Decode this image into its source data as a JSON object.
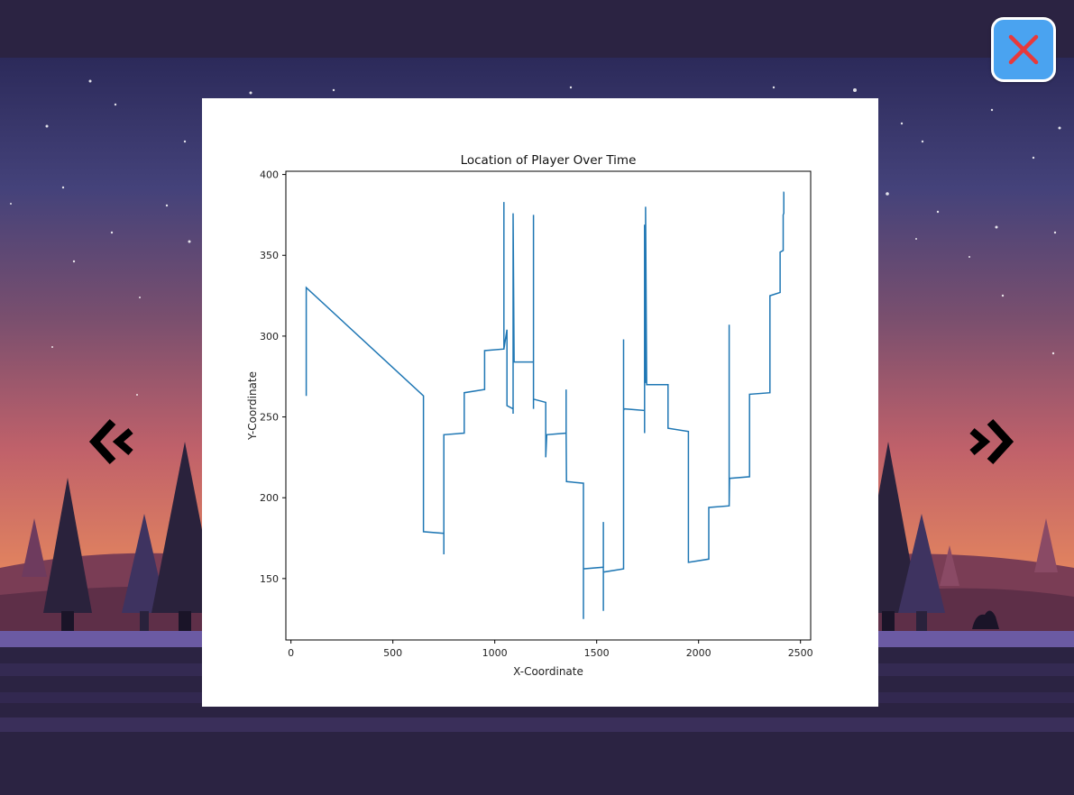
{
  "chart_data": {
    "type": "line",
    "title": "Location of Player Over Time",
    "xlabel": "X-Coordinate",
    "ylabel": "Y-Coordinate",
    "xlim": [
      -25,
      2550
    ],
    "ylim": [
      112,
      402
    ],
    "xticks": [
      0,
      500,
      1000,
      1500,
      2000,
      2500
    ],
    "yticks": [
      150,
      200,
      250,
      300,
      350,
      400
    ],
    "grid": false,
    "series_color": "#1f77b4",
    "series": [
      {
        "x": [
          75,
          75,
          75,
          650,
          650,
          750,
          750,
          750,
          750,
          850,
          850,
          950,
          950,
          1045,
          1045,
          1045,
          1060,
          1060,
          1090,
          1090,
          1090,
          1095,
          1095,
          1190,
          1190,
          1190,
          1190,
          1250,
          1250,
          1255,
          1350,
          1350,
          1350,
          1352,
          1435,
          1435,
          1435,
          1533,
          1533,
          1533,
          1533,
          1632,
          1632,
          1632,
          1635,
          1735,
          1735,
          1735,
          1740,
          1740,
          1740,
          1745,
          1745,
          1850,
          1850,
          1950,
          1950,
          2050,
          2050,
          2150,
          2150,
          2150,
          2152,
          2250,
          2250,
          2350,
          2350,
          2400,
          2400,
          2415,
          2415,
          2418,
          2418,
          2420
        ],
        "y": [
          263,
          275,
          330,
          263,
          179,
          178,
          165,
          178,
          239,
          240,
          265,
          267,
          291,
          292,
          383,
          292,
          304,
          257,
          255,
          252,
          376,
          285,
          284,
          284,
          375,
          255,
          261,
          259,
          225,
          239,
          240,
          267,
          240,
          210,
          209,
          125,
          156,
          157,
          185,
          130,
          154,
          156,
          298,
          254,
          255,
          254,
          240,
          369,
          310,
          271,
          380,
          271,
          270,
          270,
          243,
          241,
          160,
          162,
          194,
          195,
          307,
          195,
          212,
          213,
          264,
          265,
          325,
          327,
          352,
          353,
          375,
          376,
          389,
          389
        ]
      }
    ]
  }
}
